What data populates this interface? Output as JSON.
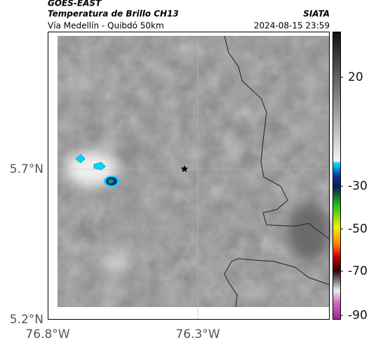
{
  "header": {
    "source": "GOES-EAST",
    "title": "Temperatura de Brillo CH13",
    "subtitle": "Vía Medellín - Quibdó 50km",
    "org": "SIATA",
    "timestamp": "2024-08-15 23:59"
  },
  "map": {
    "lat_ticks": [
      "5.7°N",
      "5.2°N"
    ],
    "lon_ticks": [
      "76.8°W",
      "76.3°W"
    ]
  },
  "colorbar": {
    "ticks": [
      "20",
      "-30",
      "-50",
      "-70",
      "-90"
    ]
  }
}
